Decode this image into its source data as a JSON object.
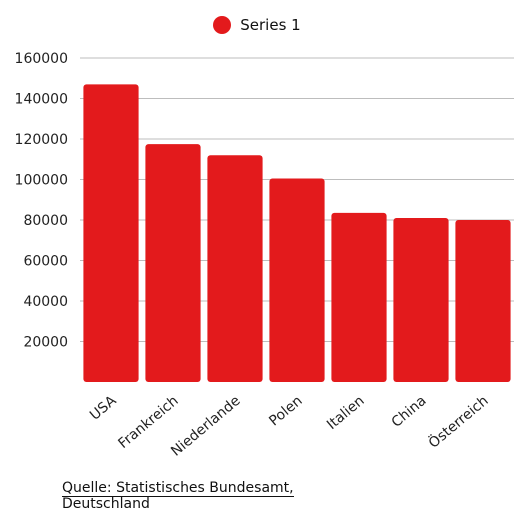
{
  "chart_data": {
    "type": "bar",
    "categories": [
      "USA",
      "Frankreich",
      "Niederlande",
      "Polen",
      "Italien",
      "China",
      "Österreich"
    ],
    "series": [
      {
        "name": "Series 1",
        "values": [
          147000,
          117500,
          112000,
          100500,
          83500,
          81000,
          80000
        ],
        "color": "#e31a1c"
      }
    ],
    "yticks": [
      20000,
      40000,
      60000,
      80000,
      100000,
      120000,
      140000,
      160000
    ],
    "ylim": [
      0,
      160000
    ],
    "grid": true,
    "legend_position": "top-center",
    "title": "",
    "xlabel": "",
    "ylabel": ""
  },
  "legend": {
    "label": "Series 1",
    "color": "#e31a1c"
  },
  "source": {
    "line1": "Quelle: Statistisches Bundesamt,",
    "line2": "Deutschland"
  }
}
